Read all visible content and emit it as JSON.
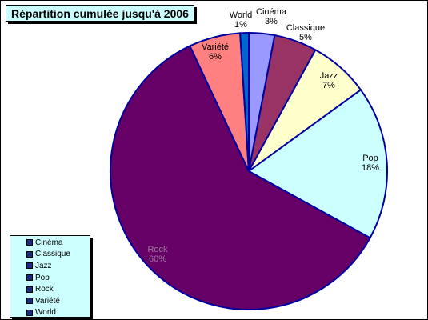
{
  "title": "Répartition cumulée jusqu'à 2006",
  "chart_data": {
    "type": "pie",
    "title": "Répartition cumulée jusqu'à 2006",
    "legend_position": "bottom-left",
    "slices": [
      {
        "label": "Cinéma",
        "value": 3,
        "percent_label": "3%",
        "color": "#9999ff"
      },
      {
        "label": "Classique",
        "value": 5,
        "percent_label": "5%",
        "color": "#993366"
      },
      {
        "label": "Jazz",
        "value": 7,
        "percent_label": "7%",
        "color": "#ffffcc"
      },
      {
        "label": "Pop",
        "value": 18,
        "percent_label": "18%",
        "color": "#ccffff"
      },
      {
        "label": "Rock",
        "value": 60,
        "percent_label": "60%",
        "color": "#660066"
      },
      {
        "label": "Variété",
        "value": 6,
        "percent_label": "6%",
        "color": "#ff8080"
      },
      {
        "label": "World",
        "value": 1,
        "percent_label": "1%",
        "color": "#0066cc"
      }
    ]
  },
  "legend": {
    "items": [
      "Cinéma",
      "Classique",
      "Jazz",
      "Pop",
      "Rock",
      "Variété",
      "World"
    ]
  }
}
